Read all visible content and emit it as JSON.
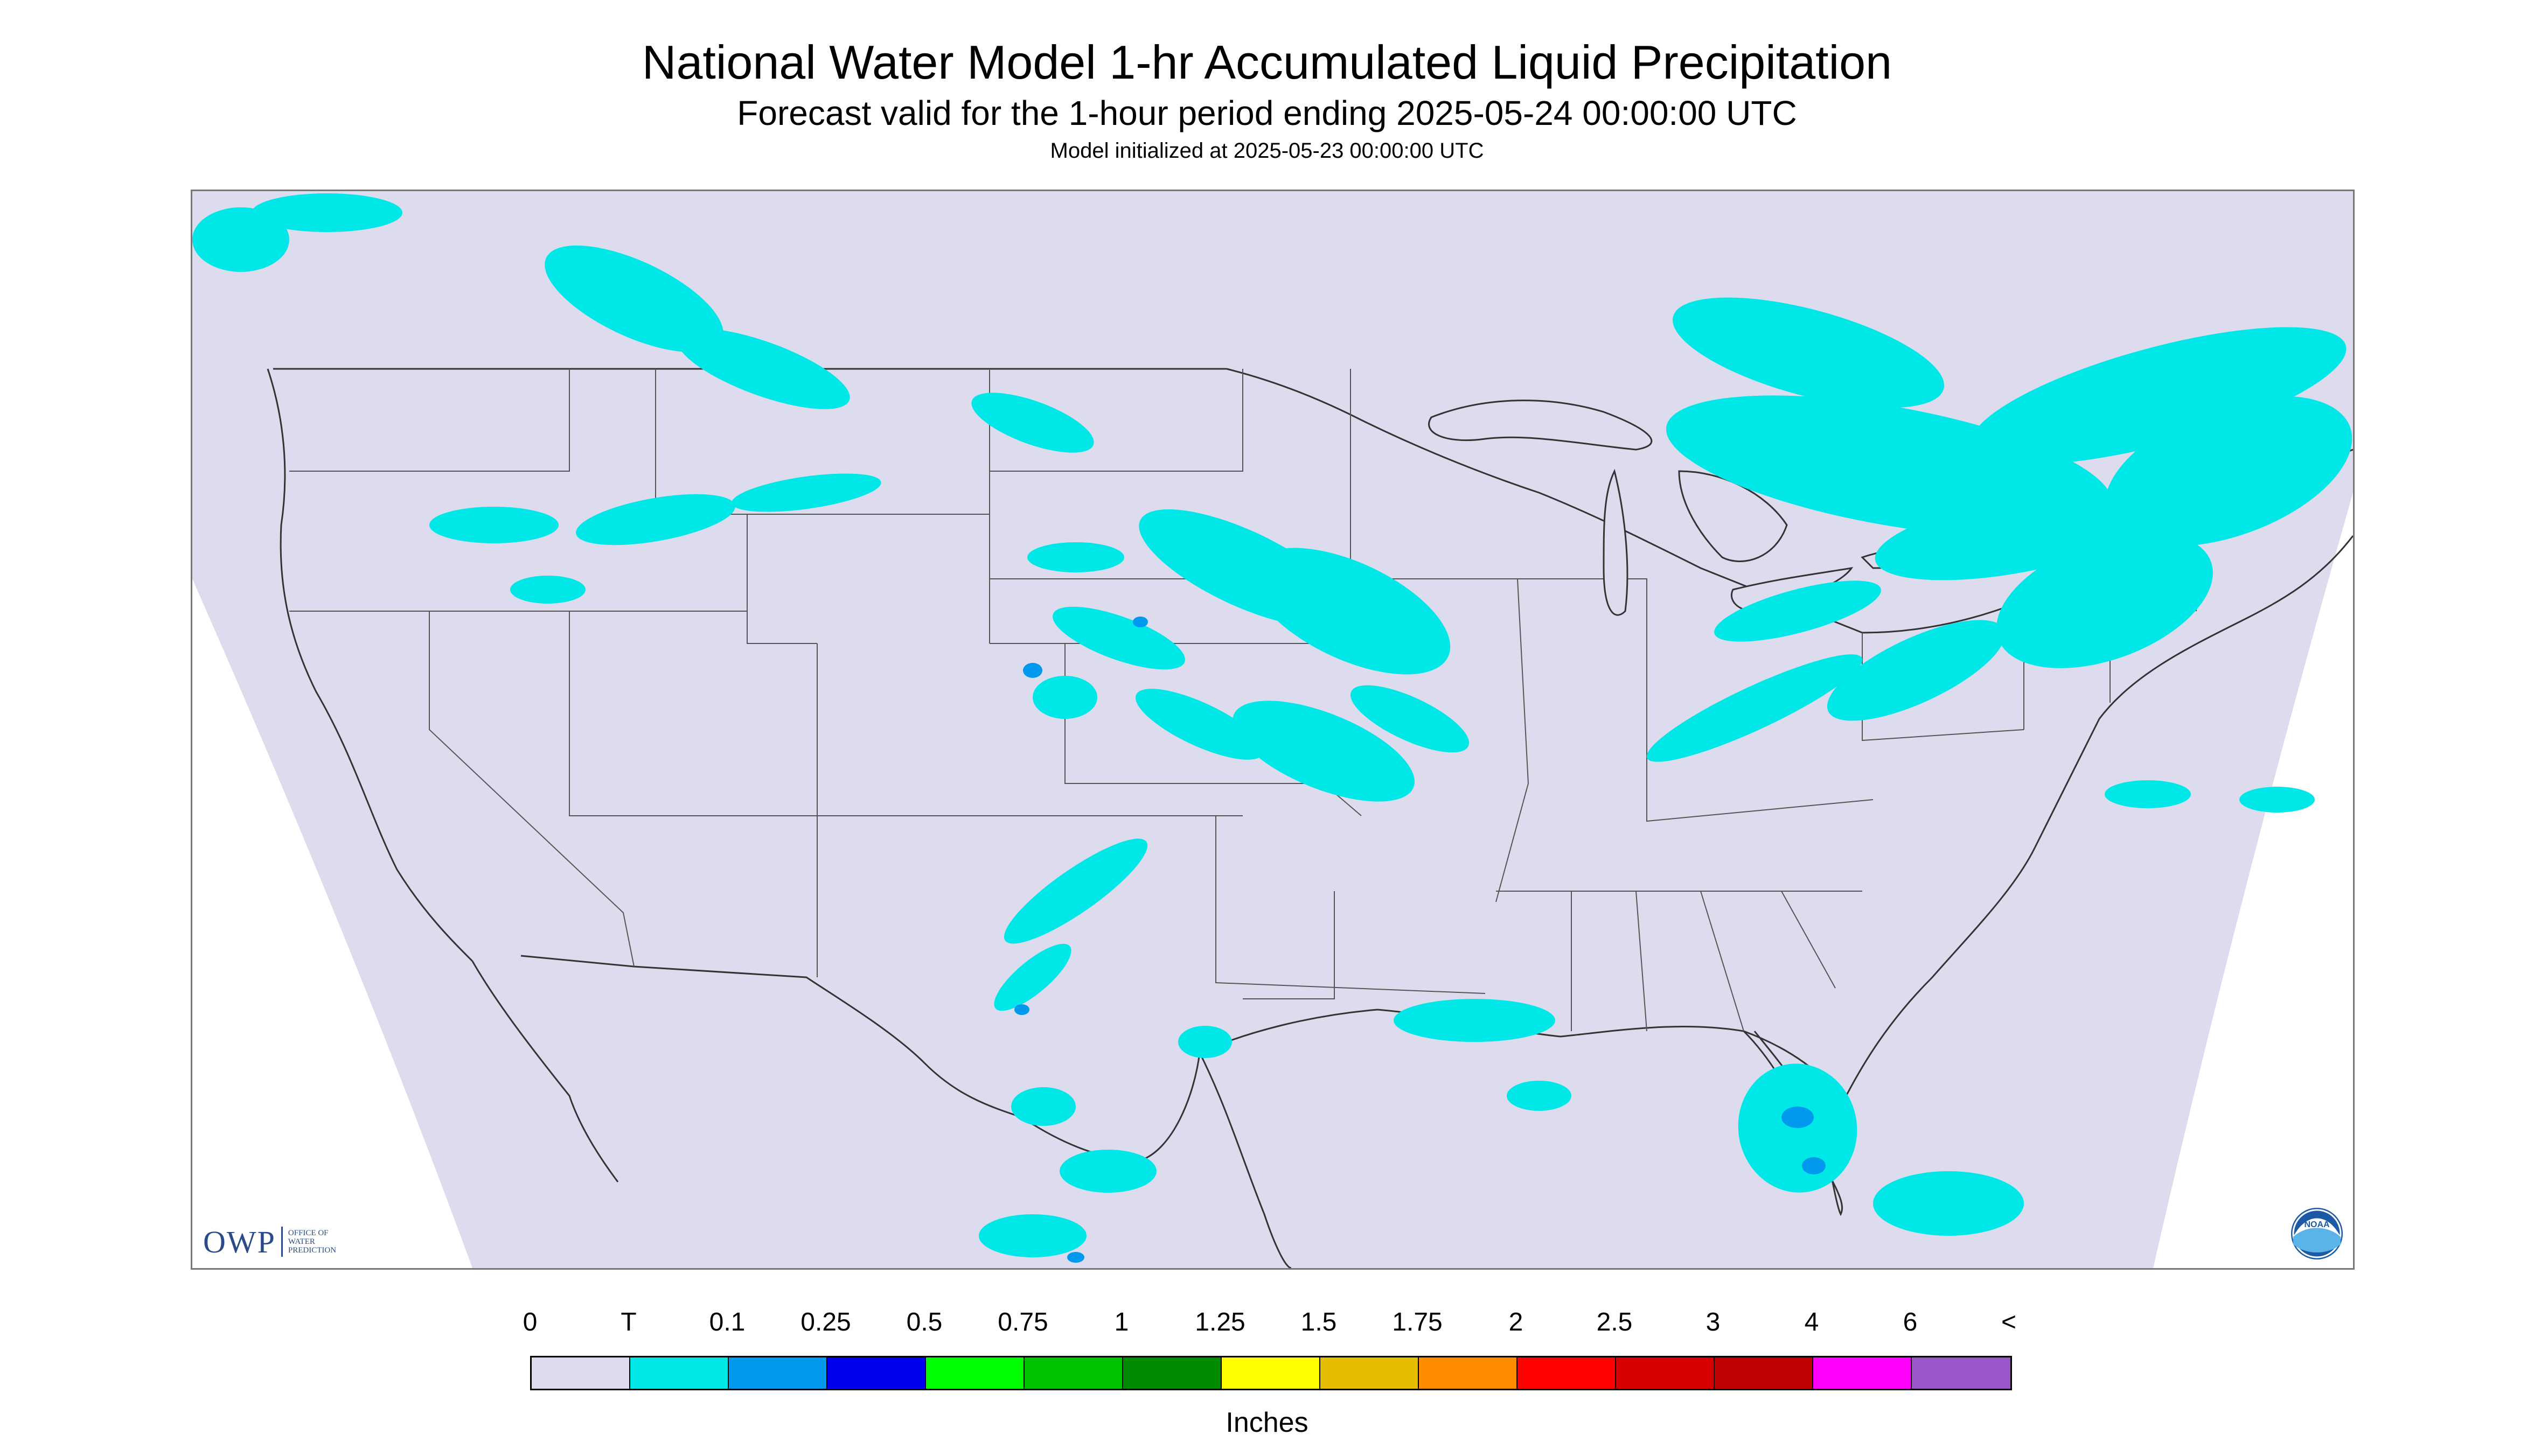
{
  "header": {
    "title": "National Water Model 1-hr Accumulated Liquid Precipitation",
    "subtitle": "Forecast valid for the 1-hour period ending 2025-05-24 00:00:00 UTC",
    "init": "Model initialized at 2025-05-23 00:00:00 UTC"
  },
  "map": {
    "background_color": "#dcdcee",
    "outside_color": "#ffffff",
    "boundary_color": "#333333",
    "region": "Contiguous United States with southern Canada and northern Mexico",
    "precip_color_trace": "#00e7e7",
    "precip_color_light": "#0099ee"
  },
  "logos": {
    "owp_mark": "OWP",
    "owp_text_1": "OFFICE OF",
    "owp_text_2": "WATER",
    "owp_text_3": "PREDICTION",
    "noaa_text": "NOAA"
  },
  "legend": {
    "labels": [
      "0",
      "T",
      "0.1",
      "0.25",
      "0.5",
      "0.75",
      "1",
      "1.25",
      "1.5",
      "1.75",
      "2",
      "2.5",
      "3",
      "4",
      "6",
      "<"
    ],
    "colors": [
      "#dcdcee",
      "#00e7e7",
      "#0099ee",
      "#0000f0",
      "#00ff00",
      "#00c300",
      "#008b00",
      "#ffff00",
      "#e6be00",
      "#ff8c00",
      "#ff0000",
      "#d70000",
      "#be0000",
      "#ff00ff",
      "#9955cc"
    ],
    "units": "Inches"
  }
}
